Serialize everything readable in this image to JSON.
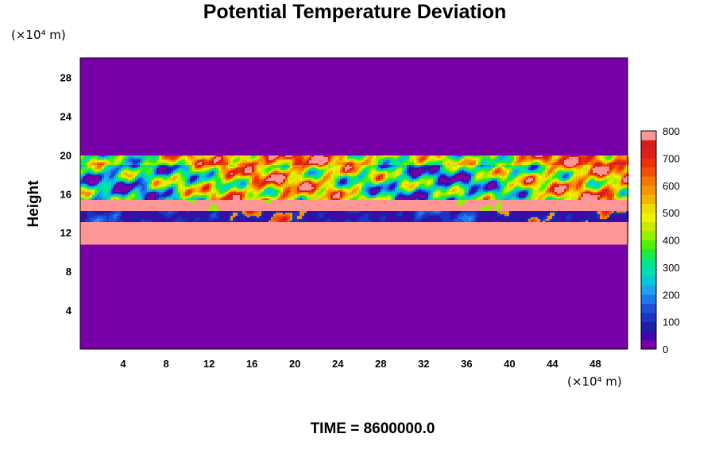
{
  "chart_data": {
    "type": "heatmap",
    "title": "Potential Temperature Deviation",
    "ylabel": "Height",
    "xlabel": "",
    "y_unit": "(×10⁴ m)",
    "x_unit": "(×10⁴ m)",
    "annotation": "TIME = 8600000.0",
    "xlim": [
      0,
      51
    ],
    "ylim": [
      0,
      30
    ],
    "x_ticks": [
      4,
      8,
      12,
      16,
      20,
      24,
      28,
      32,
      36,
      40,
      44,
      48
    ],
    "y_ticks": [
      4,
      8,
      12,
      16,
      20,
      24,
      28
    ],
    "colorbar": {
      "range": [
        0,
        800
      ],
      "ticks": [
        0,
        100,
        200,
        300,
        400,
        500,
        600,
        700,
        800
      ],
      "colors": [
        "#7800a8",
        "#3c0aa8",
        "#1e1ea8",
        "#1e32c8",
        "#1e50dc",
        "#1e78f0",
        "#1ea0f0",
        "#00c8dc",
        "#00dcb4",
        "#00e68c",
        "#1eeb3c",
        "#50f000",
        "#96f000",
        "#c8eb00",
        "#f0f000",
        "#f0dc00",
        "#f5b400",
        "#f59600",
        "#f57800",
        "#f05000",
        "#eb3200",
        "#e11e1e",
        "#d21e1e",
        "#ff9696"
      ]
    },
    "field_description_bands": [
      {
        "from_y": 0,
        "to_y": 10.8,
        "value": 0
      },
      {
        "from_y": 10.8,
        "to_y": 13.0,
        "value": 800
      },
      {
        "from_y": 13.0,
        "to_y": 14.2,
        "value": "mixed (low values, some high)"
      },
      {
        "from_y": 14.2,
        "to_y": 15.4,
        "value": 800
      },
      {
        "from_y": 15.4,
        "to_y": 19.8,
        "value": "turbulent mixed 0-800"
      },
      {
        "from_y": 19.8,
        "to_y": 30,
        "value": 0
      }
    ]
  }
}
